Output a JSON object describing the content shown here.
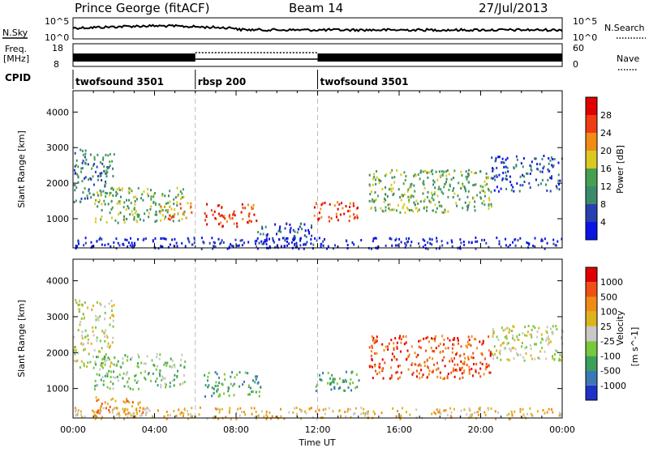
{
  "header": {
    "station": "Prince George (fitACF)",
    "beam": "Beam 14",
    "date": "27/Jul/2013"
  },
  "top_panels": {
    "nsky_label": "N.Sky",
    "nsky_top": "10^5",
    "nsky_bottom": "10^0",
    "nsearch_label": "N.Search",
    "nsearch_top": "10^5",
    "nsearch_bottom": "10^0",
    "freq_label_1": "Freq.",
    "freq_label_2": "[MHz]",
    "freq_top": "18",
    "freq_bottom": "8",
    "nave_label": "Nave",
    "nave_top": "60",
    "nave_bottom": "0",
    "cpid_label": "CPID",
    "cpid_segments": [
      {
        "label": "twofsound 3501",
        "start_hour": 0,
        "end_hour": 6
      },
      {
        "label": "rbsp 200",
        "start_hour": 6,
        "end_hour": 12
      },
      {
        "label": "twofsound 3501",
        "start_hour": 12,
        "end_hour": 24
      }
    ]
  },
  "chart_data": [
    {
      "type": "heatmap",
      "ylabel": "Slant Range [km]",
      "yticks": [
        1000,
        2000,
        3000,
        4000
      ],
      "ylim": [
        180,
        4600
      ],
      "xlim": [
        0,
        24
      ],
      "colorbar_label": "Power [dB]",
      "colorbar_ticks": [
        4,
        8,
        12,
        16,
        20,
        24,
        28
      ],
      "colorbar_colors": [
        "#0a14e6",
        "#2840b0",
        "#3c8a6a",
        "#46a050",
        "#dcc81e",
        "#f08c14",
        "#f03c14",
        "#e00000"
      ],
      "echo_regions": [
        {
          "t0": 0.0,
          "t1": 2.0,
          "r0": 1500,
          "r1": 3000,
          "level": 2
        },
        {
          "t0": 1.0,
          "t1": 5.5,
          "r0": 900,
          "r1": 1900,
          "level": 3
        },
        {
          "t0": 4.2,
          "t1": 5.8,
          "r0": 1000,
          "r1": 1500,
          "level": 5
        },
        {
          "t0": 6.4,
          "t1": 9.0,
          "r0": 800,
          "r1": 1450,
          "level": 6
        },
        {
          "t0": 9.0,
          "t1": 11.8,
          "r0": 250,
          "r1": 900,
          "level": 1
        },
        {
          "t0": 11.8,
          "t1": 14.0,
          "r0": 950,
          "r1": 1500,
          "level": 6
        },
        {
          "t0": 14.5,
          "t1": 20.5,
          "r0": 1200,
          "r1": 2400,
          "level": 3
        },
        {
          "t0": 20.5,
          "t1": 24.0,
          "r0": 1800,
          "r1": 2800,
          "level": 1
        },
        {
          "t0": 0.0,
          "t1": 24.0,
          "r0": 180,
          "r1": 500,
          "level": 0
        }
      ]
    },
    {
      "type": "heatmap",
      "ylabel": "Slant Range [km]",
      "yticks": [
        1000,
        2000,
        3000,
        4000
      ],
      "ylim": [
        180,
        4600
      ],
      "xlim": [
        0,
        24
      ],
      "xticks": [
        "00:00",
        "04:00",
        "08:00",
        "12:00",
        "16:00",
        "20:00",
        "00:00"
      ],
      "xlabel": "Time UT",
      "colorbar_label": "Velocity",
      "colorbar_unit": "[m s^-1]",
      "colorbar_ticks": [
        "1000",
        "500",
        "100",
        "25",
        "-25",
        "-100",
        "-500",
        "-1000"
      ],
      "colorbar_colors": [
        "#1e32c8",
        "#3c78b4",
        "#3ca05a",
        "#78c83c",
        "#c8c8c8",
        "#dcb41e",
        "#f08c14",
        "#f05014",
        "#e00000"
      ],
      "echo_regions": [
        {
          "t0": 0.0,
          "t1": 2.0,
          "r0": 1600,
          "r1": 3500,
          "color": 4
        },
        {
          "t0": 1.0,
          "t1": 5.5,
          "r0": 1000,
          "r1": 2000,
          "color": 3
        },
        {
          "t0": 1.0,
          "t1": 3.5,
          "r0": 250,
          "r1": 800,
          "color": 6
        },
        {
          "t0": 6.4,
          "t1": 9.2,
          "r0": 800,
          "r1": 1500,
          "color": 2
        },
        {
          "t0": 11.8,
          "t1": 14.0,
          "r0": 950,
          "r1": 1500,
          "color": 2
        },
        {
          "t0": 14.5,
          "t1": 20.5,
          "r0": 1300,
          "r1": 2500,
          "color": 7
        },
        {
          "t0": 20.5,
          "t1": 24.0,
          "r0": 1800,
          "r1": 2800,
          "color": 4
        },
        {
          "t0": 0.0,
          "t1": 24.0,
          "r0": 180,
          "r1": 500,
          "color": 5
        }
      ]
    }
  ]
}
